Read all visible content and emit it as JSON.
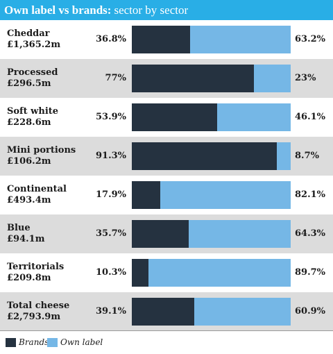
{
  "header": {
    "title_bold": "Own label vs brands:",
    "title_rest": "sector by sector"
  },
  "colors": {
    "brands": "#253240",
    "own_label": "#75b7e6",
    "header": "#29aee6",
    "row_shade": "#dcdcdc"
  },
  "chart_data": {
    "type": "bar",
    "stacked": true,
    "orientation": "horizontal",
    "title": "Own label vs brands: sector by sector",
    "categories": [
      {
        "name": "Cheddar",
        "value": "£1,365.2m"
      },
      {
        "name": "Processed",
        "value": "£296.5m"
      },
      {
        "name": "Soft white",
        "value": "£228.6m"
      },
      {
        "name": "Mini portions",
        "value": "£106.2m"
      },
      {
        "name": "Continental",
        "value": "£493.4m"
      },
      {
        "name": "Blue",
        "value": "£94.1m"
      },
      {
        "name": "Territorials",
        "value": "£209.8m"
      },
      {
        "name": "Total cheese",
        "value": "£2,793.9m"
      }
    ],
    "series": [
      {
        "name": "Brands",
        "values": [
          36.8,
          77,
          53.9,
          91.3,
          17.9,
          35.7,
          10.3,
          39.1
        ],
        "labels": [
          "36.8%",
          "77%",
          "53.9%",
          "91.3%",
          "17.9%",
          "35.7%",
          "10.3%",
          "39.1%"
        ]
      },
      {
        "name": "Own label",
        "values": [
          63.2,
          23,
          46.1,
          8.7,
          82.1,
          64.3,
          89.7,
          60.9
        ],
        "labels": [
          "63.2%",
          "23%",
          "46.1%",
          "8.7%",
          "82.1%",
          "64.3%",
          "89.7%",
          "60.9%"
        ]
      }
    ],
    "xlim": [
      0,
      100
    ],
    "legend_position": "bottom-left"
  }
}
